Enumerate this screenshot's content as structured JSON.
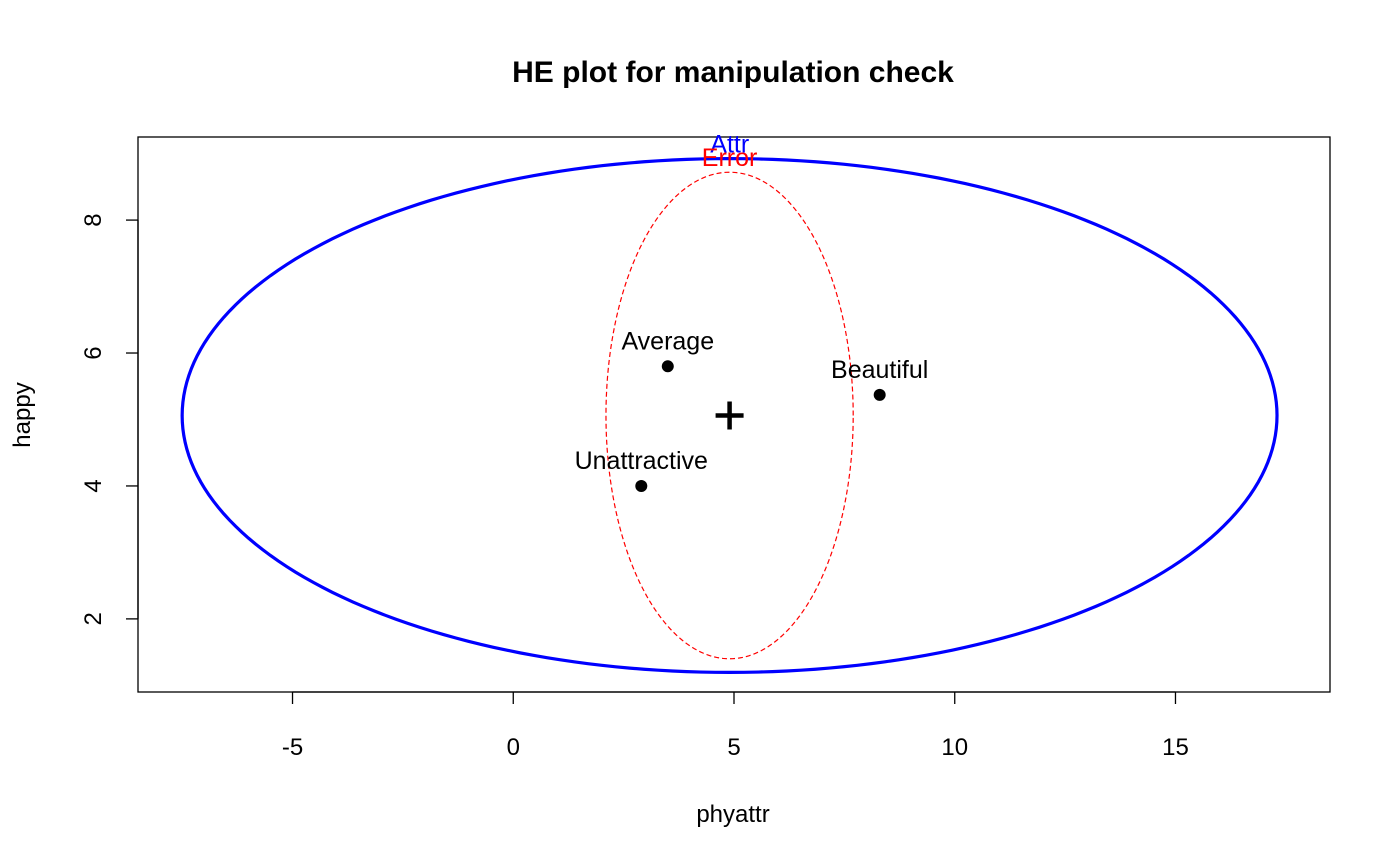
{
  "chart_data": {
    "type": "scatter",
    "title": "HE plot for manipulation check",
    "xlabel": "phyattr",
    "ylabel": "happy",
    "xlim": [
      -8.5,
      18.5
    ],
    "ylim": [
      0.9,
      9.25
    ],
    "x_ticks": [
      -5,
      0,
      5,
      10,
      15
    ],
    "y_ticks": [
      2,
      4,
      6,
      8
    ],
    "grid": false,
    "points": [
      {
        "label": "Average",
        "x": 3.5,
        "y": 5.8
      },
      {
        "label": "Beautiful",
        "x": 8.3,
        "y": 5.37
      },
      {
        "label": "Unattractive",
        "x": 2.9,
        "y": 4.0
      }
    ],
    "grand_mean": {
      "x": 4.9,
      "y": 5.06
    },
    "ellipses": [
      {
        "name": "Attr",
        "color": "#0000ff",
        "style": "solid",
        "center": {
          "x": 4.9,
          "y": 5.06
        },
        "extremes": {
          "x": [
            -7.5,
            17.3
          ],
          "y": [
            1.2,
            8.93
          ]
        }
      },
      {
        "name": "Error",
        "color": "#ff0000",
        "style": "dashed",
        "center": {
          "x": 4.9,
          "y": 5.06
        },
        "extremes": {
          "x": [
            2.1,
            7.7
          ],
          "y": [
            1.4,
            8.72
          ]
        }
      }
    ]
  }
}
